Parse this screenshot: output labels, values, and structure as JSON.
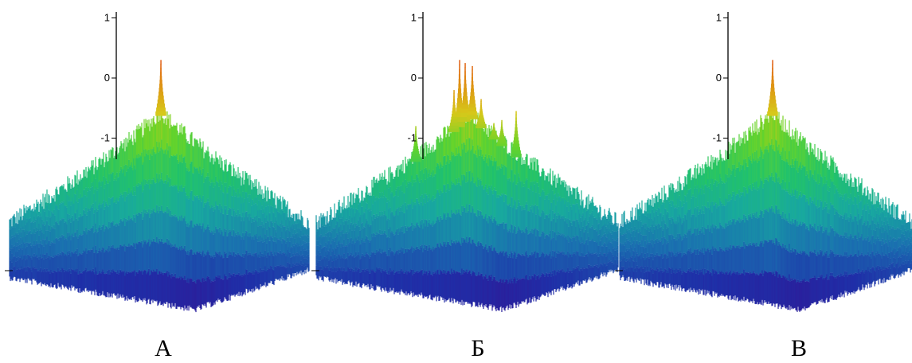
{
  "chart_data": [
    {
      "type": "surface",
      "panel_label": "А",
      "z_ticks": [
        "1",
        "0",
        "-1"
      ],
      "z_values": [
        1,
        0,
        -1
      ],
      "peaks": [
        {
          "height_z": 0.3
        }
      ],
      "colormap": [
        "#3a0a8c",
        "#1f2fa8",
        "#1a6fb0",
        "#18a8a0",
        "#22c36a",
        "#66d42a",
        "#d6c81a",
        "#e08a12",
        "#e0401c"
      ]
    },
    {
      "type": "surface",
      "panel_label": "Б",
      "z_ticks": [
        "1",
        "0",
        "-1"
      ],
      "z_values": [
        1,
        0,
        -1
      ],
      "peaks": [
        {
          "height_z": 0.3
        },
        {
          "height_z": 0.25
        },
        {
          "height_z": 0.2
        },
        {
          "height_z": -0.2
        },
        {
          "height_z": -0.35
        },
        {
          "height_z": -0.55
        },
        {
          "height_z": -0.7
        },
        {
          "height_z": -0.75
        },
        {
          "height_z": -0.8
        }
      ],
      "colormap": [
        "#3a0a8c",
        "#1f2fa8",
        "#1a6fb0",
        "#18a8a0",
        "#22c36a",
        "#66d42a",
        "#d6c81a",
        "#e08a12",
        "#e0401c"
      ]
    },
    {
      "type": "surface",
      "panel_label": "В",
      "z_ticks": [
        "1",
        "0",
        "-1"
      ],
      "z_values": [
        1,
        0,
        -1
      ],
      "peaks": [
        {
          "height_z": 0.3
        }
      ],
      "colormap": [
        "#3a0a8c",
        "#1f2fa8",
        "#1a6fb0",
        "#18a8a0",
        "#22c36a",
        "#66d42a",
        "#d6c81a",
        "#e08a12",
        "#e0401c"
      ]
    }
  ]
}
